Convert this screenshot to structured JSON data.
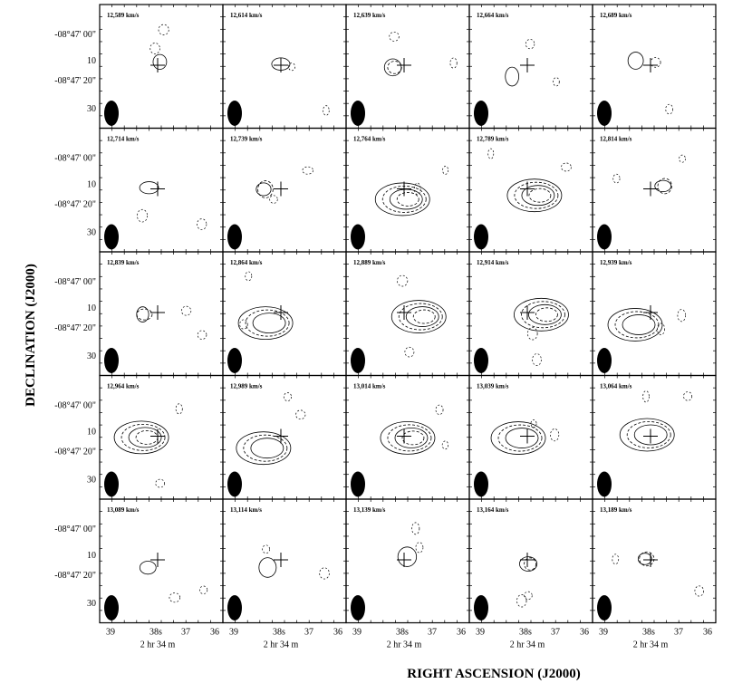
{
  "panels": [
    {
      "velocity": "12,589 km/s"
    },
    {
      "velocity": "12,614 km/s"
    },
    {
      "velocity": "12,639 km/s"
    },
    {
      "velocity": "12,664 km/s"
    },
    {
      "velocity": "12,689 km/s"
    },
    {
      "velocity": "12,714 km/s"
    },
    {
      "velocity": "12,739 km/s"
    },
    {
      "velocity": "12,764 km/s"
    },
    {
      "velocity": "12,789 km/s"
    },
    {
      "velocity": "12,814 km/s"
    },
    {
      "velocity": "12,839 km/s"
    },
    {
      "velocity": "12,864 km/s"
    },
    {
      "velocity": "12,889 km/s"
    },
    {
      "velocity": "12,914 km/s"
    },
    {
      "velocity": "12,939 km/s"
    },
    {
      "velocity": "12,964 km/s"
    },
    {
      "velocity": "12,989 km/s"
    },
    {
      "velocity": "13,014 km/s"
    },
    {
      "velocity": "13,039 km/s"
    },
    {
      "velocity": "13,064 km/s"
    },
    {
      "velocity": "13,089 km/s"
    },
    {
      "velocity": "13,114 km/s"
    },
    {
      "velocity": "13,139 km/s"
    },
    {
      "velocity": "13,164 km/s"
    },
    {
      "velocity": "13,189 km/s"
    }
  ],
  "y_axis": {
    "title": "DECLINATION (J2000)",
    "ticks": [
      "-08°47' 00\"",
      "10",
      "-08°47' 20\"",
      "30"
    ]
  },
  "x_axis": {
    "title": "RIGHT ASCENSION (J2000)",
    "ticks": [
      "39",
      "38s",
      "37",
      "36"
    ],
    "unit": "2 hr 34 m"
  }
}
